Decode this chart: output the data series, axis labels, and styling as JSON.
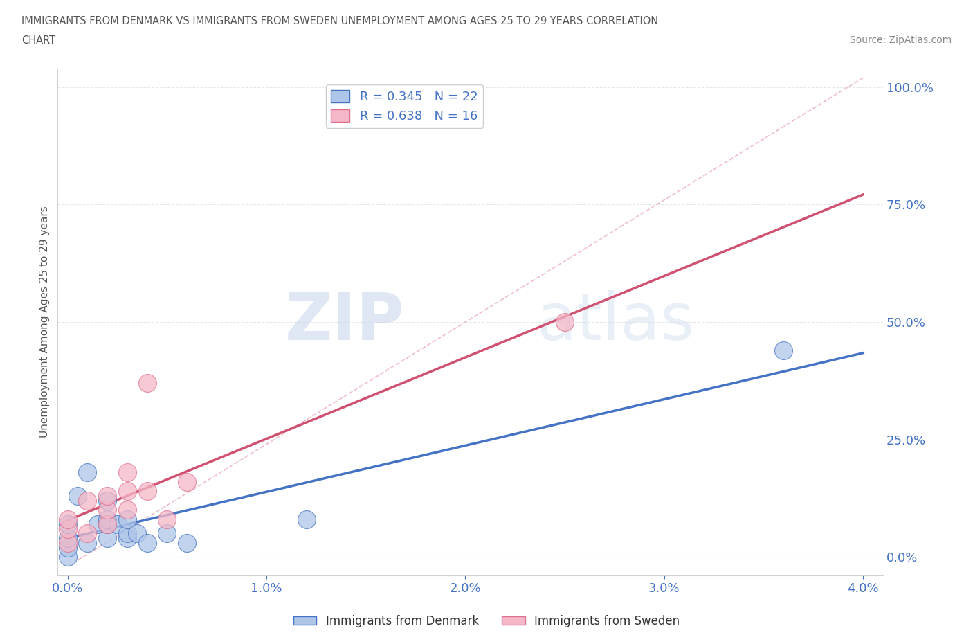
{
  "title_line1": "IMMIGRANTS FROM DENMARK VS IMMIGRANTS FROM SWEDEN UNEMPLOYMENT AMONG AGES 25 TO 29 YEARS CORRELATION",
  "title_line2": "CHART",
  "source_text": "Source: ZipAtlas.com",
  "ylabel": "Unemployment Among Ages 25 to 29 years",
  "xlim": [
    -0.0005,
    0.041
  ],
  "ylim": [
    -0.04,
    1.04
  ],
  "xtick_labels": [
    "0.0%",
    "1.0%",
    "2.0%",
    "3.0%",
    "4.0%"
  ],
  "xtick_values": [
    0.0,
    0.01,
    0.02,
    0.03,
    0.04
  ],
  "ytick_labels": [
    "0.0%",
    "25.0%",
    "50.0%",
    "75.0%",
    "100.0%"
  ],
  "ytick_values": [
    0.0,
    0.25,
    0.5,
    0.75,
    1.0
  ],
  "denmark_fill_color": "#aec6e8",
  "denmark_edge_color": "#4472c4",
  "sweden_fill_color": "#f4b8c8",
  "sweden_edge_color": "#e07090",
  "denmark_line_color": "#4472c4",
  "sweden_line_color": "#d05070",
  "trend_line_color": "#e8a0b0",
  "denmark_R": 0.345,
  "denmark_N": 22,
  "sweden_R": 0.638,
  "sweden_N": 16,
  "denmark_scatter_x": [
    0.0,
    0.0,
    0.0,
    0.0,
    0.0005,
    0.001,
    0.001,
    0.0015,
    0.002,
    0.002,
    0.002,
    0.002,
    0.0025,
    0.003,
    0.003,
    0.003,
    0.0035,
    0.004,
    0.005,
    0.006,
    0.012,
    0.036
  ],
  "denmark_scatter_y": [
    0.0,
    0.02,
    0.04,
    0.07,
    0.13,
    0.03,
    0.18,
    0.07,
    0.04,
    0.07,
    0.08,
    0.12,
    0.07,
    0.04,
    0.05,
    0.08,
    0.05,
    0.03,
    0.05,
    0.03,
    0.08,
    0.44
  ],
  "sweden_scatter_x": [
    0.0,
    0.0,
    0.0,
    0.001,
    0.001,
    0.002,
    0.002,
    0.002,
    0.003,
    0.003,
    0.003,
    0.004,
    0.004,
    0.005,
    0.006,
    0.025
  ],
  "sweden_scatter_y": [
    0.03,
    0.06,
    0.08,
    0.05,
    0.12,
    0.07,
    0.1,
    0.13,
    0.1,
    0.14,
    0.18,
    0.14,
    0.37,
    0.08,
    0.16,
    0.5
  ],
  "watermark_zip": "ZIP",
  "watermark_atlas": "atlas",
  "background_color": "#ffffff",
  "grid_color": "#e8e8e8",
  "tick_color": "#4472c4",
  "spine_color": "#d0d0d0",
  "ylabel_color": "#555555",
  "title_color": "#555555",
  "source_color": "#888888"
}
